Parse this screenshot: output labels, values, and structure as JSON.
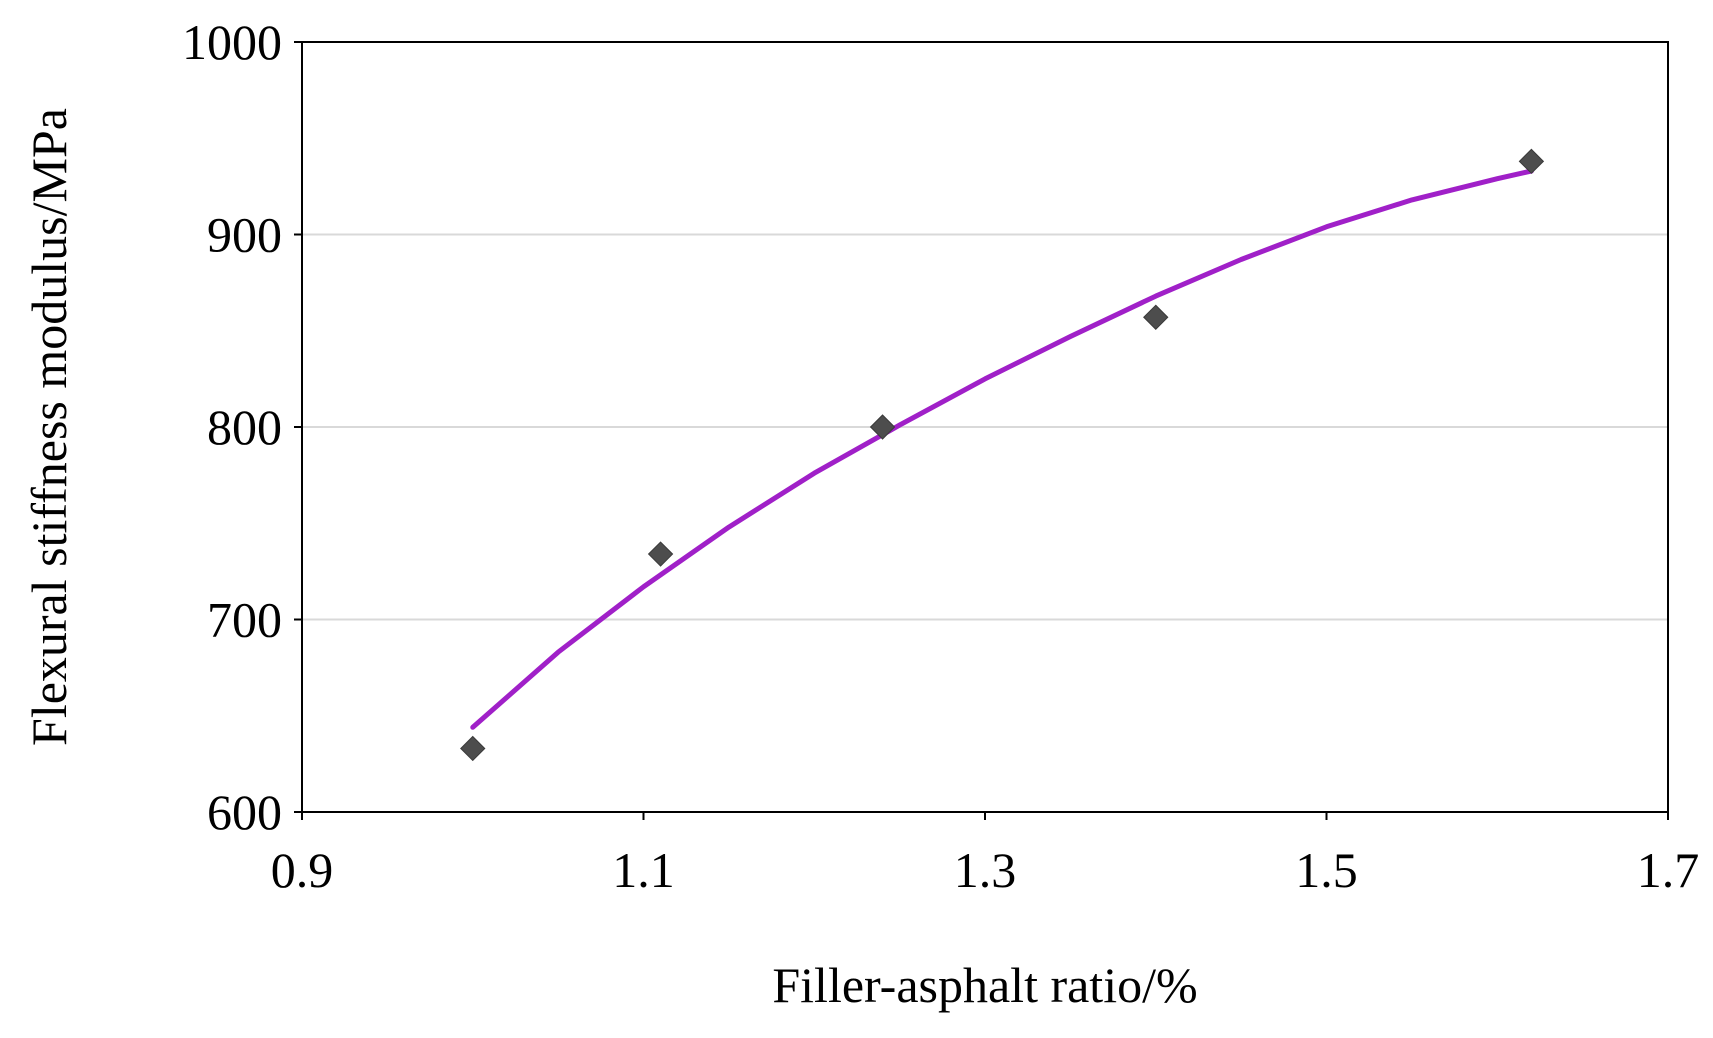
{
  "chart_data": {
    "type": "scatter",
    "title": "",
    "xlabel": "Filler-asphalt ratio/%",
    "ylabel": "Flexural stiffness modulus/MPa",
    "xlim": [
      0.9,
      1.7
    ],
    "ylim": [
      600,
      1000
    ],
    "x_ticks": [
      "0.9",
      "1.1",
      "1.3",
      "1.5",
      "1.7"
    ],
    "y_ticks": [
      "600",
      "700",
      "800",
      "900",
      "1000"
    ],
    "grid": "horizontal",
    "legend": "none",
    "series": [
      {
        "kind": "points",
        "marker": "diamond",
        "color": "#4d4d4d",
        "x": [
          1.0,
          1.11,
          1.24,
          1.4,
          1.62
        ],
        "y": [
          633,
          734,
          800,
          857,
          938
        ]
      },
      {
        "kind": "trendline",
        "color": "#a020c8",
        "x": [
          1.0,
          1.05,
          1.1,
          1.15,
          1.2,
          1.25,
          1.3,
          1.35,
          1.4,
          1.45,
          1.5,
          1.55,
          1.6,
          1.62
        ],
        "y": [
          644,
          683,
          717,
          748,
          776,
          801,
          825,
          847,
          868,
          887,
          904,
          918,
          929,
          933
        ]
      }
    ]
  }
}
